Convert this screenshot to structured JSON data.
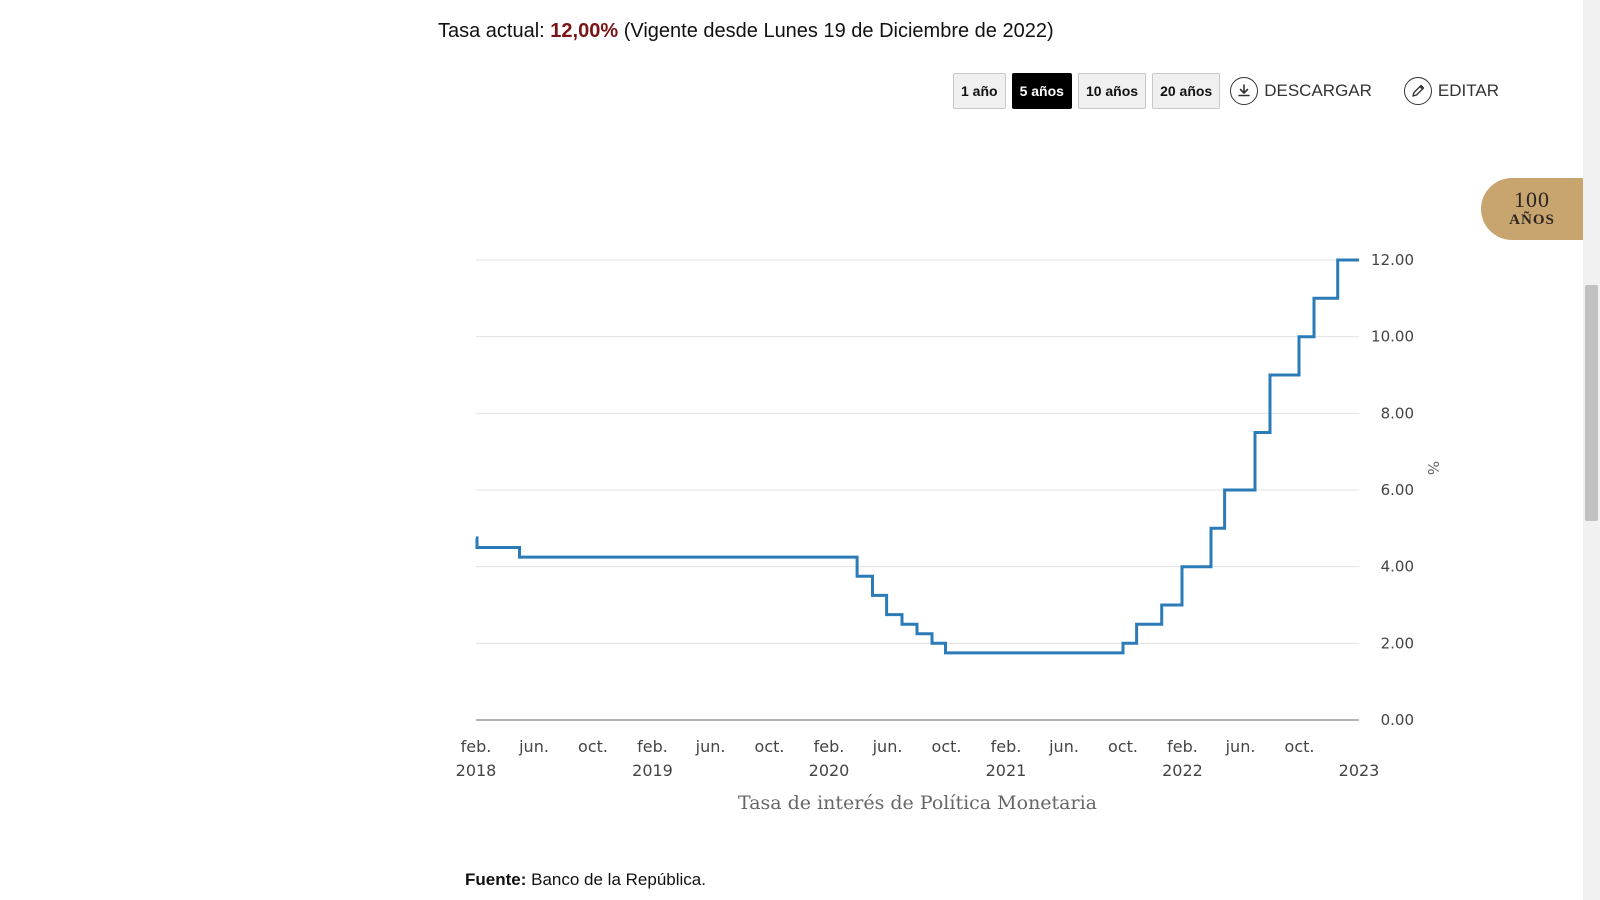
{
  "header": {
    "rate_prefix": "Tasa actual:",
    "rate_value": "12,00%",
    "rate_suffix": "(Vigente desde Lunes 19 de Diciembre de 2022)"
  },
  "toolbar": {
    "ranges": [
      {
        "label": "1 año",
        "active": false
      },
      {
        "label": "5 años",
        "active": true
      },
      {
        "label": "10 años",
        "active": false
      },
      {
        "label": "20 años",
        "active": false
      }
    ],
    "download_label": "DESCARGAR",
    "download_icon": "download-icon",
    "edit_label": "EDITAR",
    "edit_icon": "pencil-icon"
  },
  "badge": {
    "line1": "100",
    "line2": "AÑOS"
  },
  "source": {
    "label": "Fuente:",
    "text": "Banco de la República."
  },
  "colors": {
    "series": "#2b7bb9",
    "rate_value": "#7a1515",
    "badge": "#c8a56f"
  },
  "chart_data": {
    "type": "line",
    "step": true,
    "title": "",
    "xlabel": "Tasa de interés de Política Monetaria",
    "ylabel": "%",
    "x_range": [
      "2018-02-01",
      "2023-02-01"
    ],
    "ylim": [
      0,
      12
    ],
    "y_axis_side": "right",
    "yticks": [
      "0.00",
      "2.00",
      "4.00",
      "6.00",
      "8.00",
      "10.00",
      "12.00"
    ],
    "grid": true,
    "xticks": [
      {
        "date": "2018-02-01",
        "label": "feb.",
        "year": "2018"
      },
      {
        "date": "2018-06-01",
        "label": "jun.",
        "year": ""
      },
      {
        "date": "2018-10-01",
        "label": "oct.",
        "year": ""
      },
      {
        "date": "2019-02-01",
        "label": "feb.",
        "year": "2019"
      },
      {
        "date": "2019-06-01",
        "label": "jun.",
        "year": ""
      },
      {
        "date": "2019-10-01",
        "label": "oct.",
        "year": ""
      },
      {
        "date": "2020-02-01",
        "label": "feb.",
        "year": "2020"
      },
      {
        "date": "2020-06-01",
        "label": "jun.",
        "year": ""
      },
      {
        "date": "2020-10-01",
        "label": "oct.",
        "year": ""
      },
      {
        "date": "2021-02-01",
        "label": "feb.",
        "year": "2021"
      },
      {
        "date": "2021-06-01",
        "label": "jun.",
        "year": ""
      },
      {
        "date": "2021-10-01",
        "label": "oct.",
        "year": ""
      },
      {
        "date": "2022-02-01",
        "label": "feb.",
        "year": "2022"
      },
      {
        "date": "2022-06-01",
        "label": "jun.",
        "year": ""
      },
      {
        "date": "2022-10-01",
        "label": "oct.",
        "year": ""
      },
      {
        "date": "2023-02-01",
        "label": "",
        "year": "2023"
      }
    ],
    "series": [
      {
        "points": [
          {
            "x": "2018-02-01",
            "y": 4.75
          },
          {
            "x": "2018-02-03",
            "y": 4.5
          },
          {
            "x": "2018-05-02",
            "y": 4.25
          },
          {
            "x": "2020-03-30",
            "y": 3.75
          },
          {
            "x": "2020-05-01",
            "y": 3.25
          },
          {
            "x": "2020-05-30",
            "y": 2.75
          },
          {
            "x": "2020-07-01",
            "y": 2.5
          },
          {
            "x": "2020-08-01",
            "y": 2.25
          },
          {
            "x": "2020-09-01",
            "y": 2.0
          },
          {
            "x": "2020-09-29",
            "y": 1.75
          },
          {
            "x": "2021-10-01",
            "y": 2.0
          },
          {
            "x": "2021-10-29",
            "y": 2.5
          },
          {
            "x": "2021-12-20",
            "y": 3.0
          },
          {
            "x": "2022-01-31",
            "y": 4.0
          },
          {
            "x": "2022-04-01",
            "y": 5.0
          },
          {
            "x": "2022-04-29",
            "y": 6.0
          },
          {
            "x": "2022-07-01",
            "y": 7.5
          },
          {
            "x": "2022-08-01",
            "y": 9.0
          },
          {
            "x": "2022-09-30",
            "y": 10.0
          },
          {
            "x": "2022-10-31",
            "y": 11.0
          },
          {
            "x": "2022-12-19",
            "y": 12.0
          },
          {
            "x": "2023-02-01",
            "y": 12.0
          }
        ]
      }
    ]
  }
}
